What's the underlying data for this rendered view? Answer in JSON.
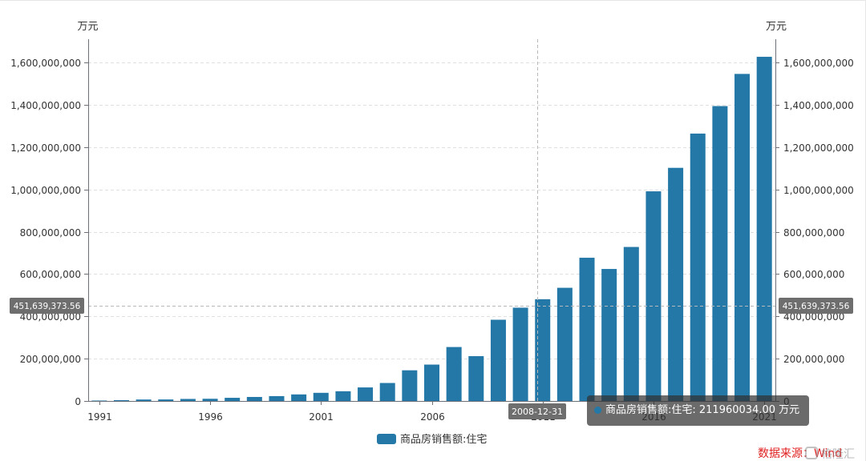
{
  "chart_data": {
    "type": "bar",
    "y_unit_left": "万元",
    "y_unit_right": "万元",
    "x": [
      1991,
      1992,
      1993,
      1994,
      1995,
      1996,
      1997,
      1998,
      1999,
      2000,
      2001,
      2002,
      2003,
      2004,
      2005,
      2006,
      2007,
      2008,
      2009,
      2010,
      2011,
      2012,
      2013,
      2014,
      2015,
      2016,
      2017,
      2018,
      2019,
      2020,
      2021
    ],
    "xticks": [
      1991,
      1996,
      2001,
      2006,
      2011,
      2016,
      2021
    ],
    "series": [
      {
        "name": "商品房销售额:住宅",
        "color": "#2378a8",
        "values": [
          2000000,
          3700000,
          6900000,
          7200000,
          9600000,
          10400000,
          14900000,
          19000000,
          23000000,
          31000000,
          38500000,
          46000000,
          64000000,
          85000000,
          145000000,
          172000000,
          255000000,
          211960034,
          384000000,
          441000000,
          481000000,
          535000000,
          677000000,
          624000000,
          728000000,
          991000000,
          1102000000,
          1264000000,
          1394000000,
          1546000000,
          1627000000
        ]
      }
    ],
    "ylim": [
      0,
      1710000000
    ],
    "yticks": [
      0,
      200000000,
      400000000,
      600000000,
      800000000,
      1000000000,
      1200000000,
      1400000000,
      1600000000
    ],
    "ytick_labels": [
      "0",
      "200,000,000",
      "400,000,000",
      "600,000,000",
      "800,000,000",
      "1,000,000,000",
      "1,200,000,000",
      "1,400,000,000",
      "1,600,000,000"
    ],
    "grid": true,
    "legend": "bottom-center"
  },
  "axis_pointer": {
    "x_label": "2008-12-31",
    "y_label": "451,639,373.56",
    "y_value": 451639373.56
  },
  "tooltip": {
    "text": "商品房销售额:住宅: 211960034.00 万元",
    "marker_color": "#2378a8"
  },
  "source": "数据来源：Wind",
  "watermark": "格隆汇"
}
